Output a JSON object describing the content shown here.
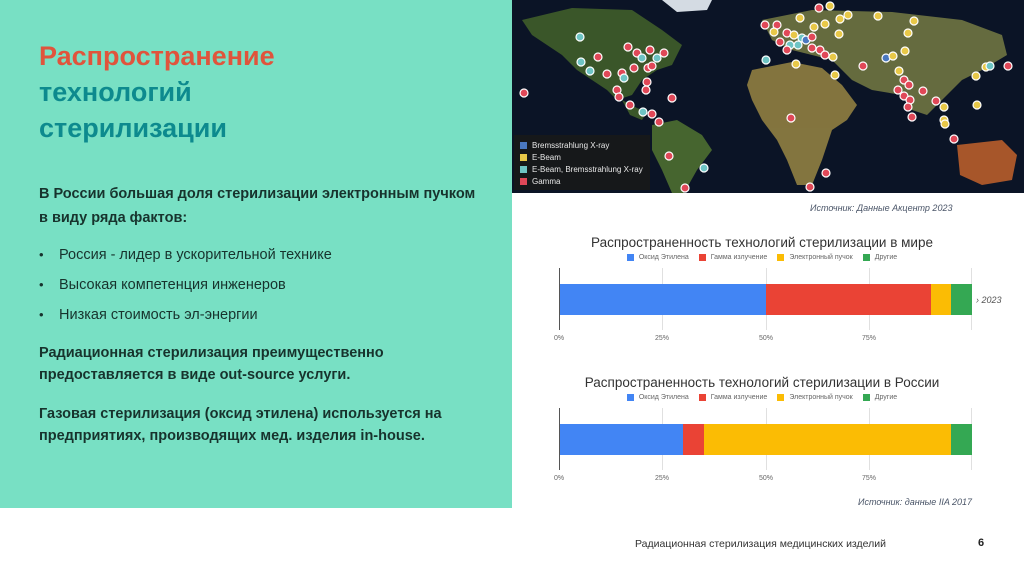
{
  "slide": {
    "title_line1": "Распространение",
    "title_line2": "технологий",
    "title_line3": "стерилизации",
    "lead": "В России большая доля стерилизации электронным пучком в виду ряда фактов:",
    "bullets": [
      "Россия - лидер в ускорительной технике",
      "Высокая компетенция инженеров",
      "Низкая стоимость эл-энергии"
    ],
    "para1": "Радиационная стерилизация преимущественно предоставляется в виде out-source услуги.",
    "para2": "Газовая стерилизация (оксид этилена) используется на предприятиях, производящих мед. изделия in-house.",
    "footer": "Радиационная стерилизация медицинских изделий",
    "page_number": "6"
  },
  "map": {
    "legend": [
      {
        "label": "Bremsstrahlung X-ray",
        "color": "#4a78c0"
      },
      {
        "label": "E-Beam",
        "color": "#e8c848"
      },
      {
        "label": "E-Beam, Bremsstrahlung X-ray",
        "color": "#6ec4c4"
      },
      {
        "label": "Gamma",
        "color": "#e04858"
      }
    ],
    "source": "Источник: Данные Акцентр 2023"
  },
  "colors": {
    "panel_bg": "#78e0c4",
    "title_accent": "#e0543c",
    "title_teal": "#0d8a8e",
    "ethylene_oxide": "#4285f4",
    "gamma": "#ea4335",
    "ebeam": "#fbbc04",
    "other": "#34a853"
  },
  "chart_data": [
    {
      "type": "bar",
      "orientation": "horizontal",
      "stacked": true,
      "title": "Распространенность технологий стерилизации в мире",
      "categories": [
        ""
      ],
      "series": [
        {
          "name": "Оксид Этилена",
          "values": [
            50
          ]
        },
        {
          "name": "Гамма излучение",
          "values": [
            40
          ]
        },
        {
          "name": "Электронный пучок",
          "values": [
            5
          ]
        },
        {
          "name": "Другие",
          "values": [
            5
          ]
        }
      ],
      "xlim": [
        0,
        100
      ],
      "xticks": [
        "0%",
        "25%",
        "50%",
        "75%"
      ],
      "legend_position": "top",
      "grid": true,
      "clipped_label": "› 2023"
    },
    {
      "type": "bar",
      "orientation": "horizontal",
      "stacked": true,
      "title": "Распространенность технологий стерилизации в  России",
      "categories": [
        ""
      ],
      "series": [
        {
          "name": "Оксид Этилена",
          "values": [
            30
          ]
        },
        {
          "name": "Гамма излучение",
          "values": [
            5
          ]
        },
        {
          "name": "Электронный пучок",
          "values": [
            60
          ]
        },
        {
          "name": "Другие",
          "values": [
            5
          ]
        }
      ],
      "xlim": [
        0,
        100
      ],
      "xticks": [
        "0%",
        "25%",
        "50%",
        "75%"
      ],
      "legend_position": "top",
      "grid": true,
      "source": "Источник: данные IIA 2017"
    }
  ]
}
